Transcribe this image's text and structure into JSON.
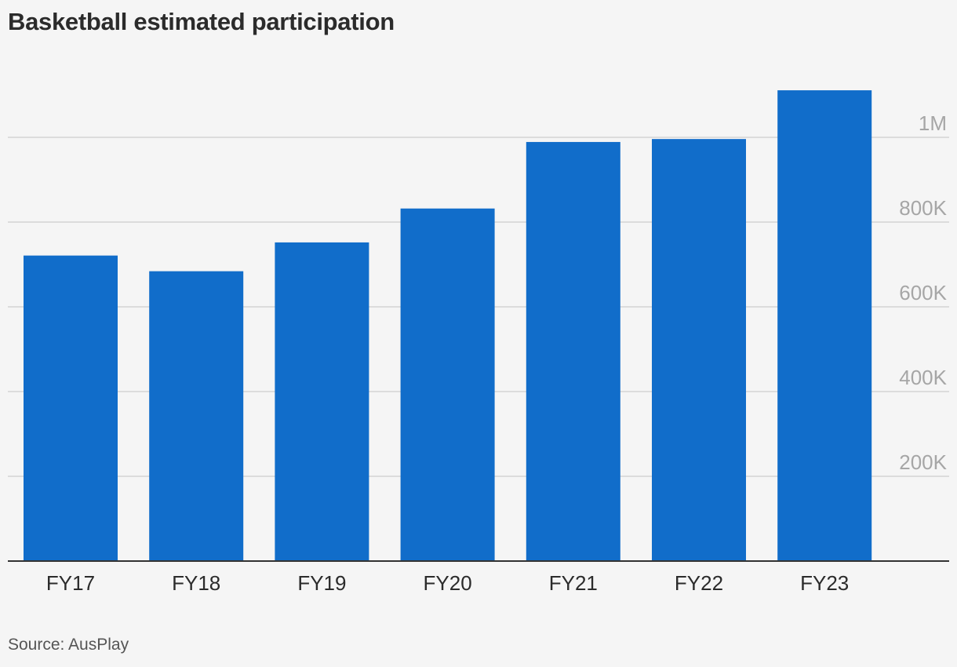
{
  "chart_data": {
    "type": "bar",
    "title": "Basketball estimated participation",
    "source": "Source: AusPlay",
    "categories": [
      "FY17",
      "FY18",
      "FY19",
      "FY20",
      "FY21",
      "FY22",
      "FY23"
    ],
    "series": [
      {
        "name": "Estimated participation",
        "values": [
          721000,
          684000,
          752000,
          832000,
          989000,
          996000,
          1111000
        ]
      }
    ],
    "y_ticks": [
      {
        "value": 200000,
        "label": "200K"
      },
      {
        "value": 400000,
        "label": "400K"
      },
      {
        "value": 600000,
        "label": "600K"
      },
      {
        "value": 800000,
        "label": "800K"
      },
      {
        "value": 1000000,
        "label": "1M"
      }
    ],
    "ylim": [
      0,
      1150000
    ],
    "xlabel": "",
    "ylabel": "",
    "grid": true,
    "y_axis_position": "right",
    "colors": {
      "bar": "#116dca",
      "grid": "#dcdcdc",
      "baseline": "#333333",
      "background": "#f5f5f5"
    }
  }
}
